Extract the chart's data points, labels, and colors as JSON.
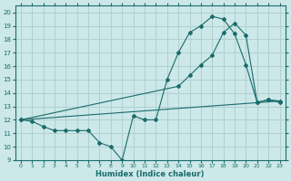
{
  "title": "",
  "xlabel": "Humidex (Indice chaleur)",
  "bg_color": "#cce8e8",
  "line_color": "#1a6b6b",
  "grid_color": "#b0d0d0",
  "xlim": [
    -0.5,
    23.5
  ],
  "ylim": [
    9,
    20.5
  ],
  "xticks": [
    0,
    1,
    2,
    3,
    4,
    5,
    6,
    7,
    8,
    9,
    10,
    11,
    12,
    13,
    14,
    15,
    16,
    17,
    18,
    19,
    20,
    21,
    22,
    23
  ],
  "yticks": [
    9,
    10,
    11,
    12,
    13,
    14,
    15,
    16,
    17,
    18,
    19,
    20
  ],
  "line1_x": [
    0,
    1,
    2,
    3,
    4,
    5,
    6,
    7,
    8,
    9,
    10,
    11,
    12,
    13,
    14,
    15,
    16,
    17,
    18,
    19,
    20,
    21,
    22,
    23
  ],
  "line1_y": [
    12,
    11.9,
    11.5,
    11.2,
    11.2,
    11.2,
    11.2,
    10.3,
    10.0,
    9.0,
    12.3,
    12.0,
    12.0,
    15.0,
    17.0,
    18.5,
    19.0,
    19.7,
    19.5,
    18.4,
    16.1,
    13.3,
    13.5,
    13.3
  ],
  "line2_x": [
    0,
    14,
    15,
    16,
    17,
    18,
    19,
    20,
    21,
    22,
    23
  ],
  "line2_y": [
    12,
    14.5,
    15.3,
    16.1,
    16.8,
    18.5,
    19.2,
    18.3,
    13.3,
    13.5,
    13.4
  ],
  "line3_x": [
    0,
    23
  ],
  "line3_y": [
    12,
    13.4
  ],
  "marker": "D",
  "markersize": 2.0,
  "lw": 0.8
}
